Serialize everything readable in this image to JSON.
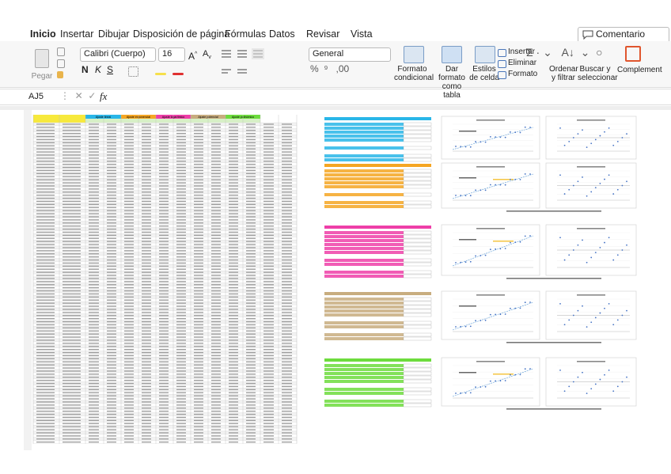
{
  "tabs": [
    "Inicio",
    "Insertar",
    "Dibujar",
    "Disposición de página",
    "Fórmulas",
    "Datos",
    "Revisar",
    "Vista"
  ],
  "comments_button": "Comentario",
  "ribbon": {
    "paste": "Pegar",
    "font": "Calibri (Cuerpo)",
    "font_size": "16",
    "bold": "N",
    "italic": "K",
    "underline": "S",
    "number_format": "General",
    "styles": [
      "Formato condicional",
      "Dar formato como tabla",
      "Estilos de celda"
    ],
    "cells": [
      "Insertar",
      "Eliminar",
      "Formato"
    ],
    "editing": [
      "Ordenar y filtrar",
      "Buscar y seleccionar"
    ],
    "addins": "Complement"
  },
  "formula_bar": {
    "name_box": "AJ5",
    "fx": "fx"
  },
  "sheet": {
    "groups": [
      "Ajuste lineal",
      "Ajuste exponencial",
      "Ajuste logarítmico",
      "Ajuste potencial",
      "Ajuste polinómico"
    ]
  }
}
